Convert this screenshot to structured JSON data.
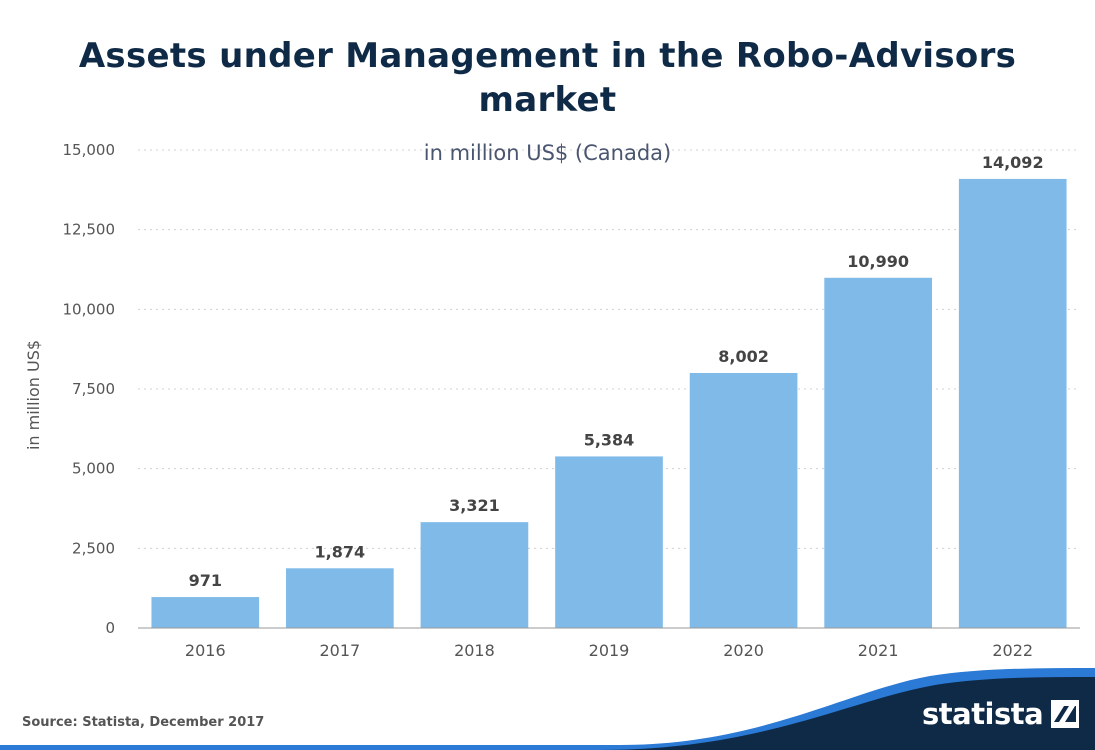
{
  "title": "Assets under Management in the Robo-Advisors market",
  "subtitle": "in million US$ (Canada)",
  "source": "Source: Statista, December 2017",
  "brand": "statista",
  "colors": {
    "bar": "#7fbae9",
    "title": "#0f2a47",
    "footer_dark": "#0f2a47",
    "footer_accent": "#2b7ad6"
  },
  "chart_data": {
    "type": "bar",
    "categories": [
      "2016",
      "2017",
      "2018",
      "2019",
      "2020",
      "2021",
      "2022"
    ],
    "values": [
      971,
      1874,
      3321,
      5384,
      8002,
      10990,
      14092
    ],
    "value_labels": [
      "971",
      "1,874",
      "3,321",
      "5,384",
      "8,002",
      "10,990",
      "14,092"
    ],
    "ylabel": "in million US$",
    "ylim": [
      0,
      15000
    ],
    "yticks": [
      0,
      2500,
      5000,
      7500,
      10000,
      12500,
      15000
    ],
    "ytick_labels": [
      "0",
      "2,500",
      "5,000",
      "7,500",
      "10,000",
      "12,500",
      "15,000"
    ],
    "grid": true
  }
}
